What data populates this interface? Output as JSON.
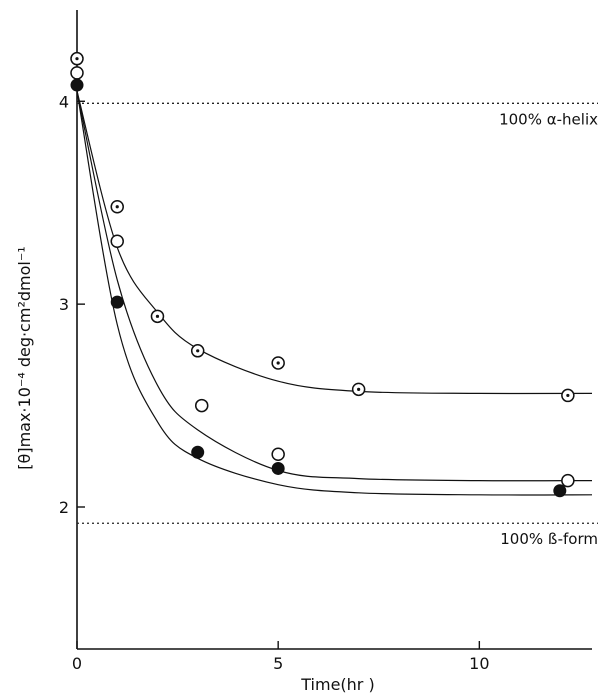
{
  "chart_data": {
    "type": "scatter",
    "title": "",
    "xlabel": "Time(hr )",
    "ylabel": "[θ]max·10⁻⁴ deg·cm²dmol⁻¹",
    "xlim": [
      0,
      12.8
    ],
    "ylim": [
      1.3,
      4.45
    ],
    "x_ticks": [
      0,
      5,
      10
    ],
    "x_tick_labels": [
      "0",
      "5",
      "10"
    ],
    "y_ticks": [
      2,
      3,
      4
    ],
    "y_tick_labels": [
      "2",
      "3",
      "4"
    ],
    "grid": false,
    "reference_lines": [
      {
        "y": 3.99,
        "label": "100% α-helix"
      },
      {
        "y": 1.92,
        "label": "100% ß-form"
      }
    ],
    "series": [
      {
        "marker": "dotted-circle",
        "x": [
          0,
          1,
          2,
          3,
          5,
          7,
          12.2
        ],
        "y": [
          4.21,
          3.48,
          2.94,
          2.77,
          2.71,
          2.58,
          2.55
        ],
        "fit_y": [
          4.05,
          3.28,
          2.96,
          2.78,
          2.62,
          2.57,
          2.56,
          2.56
        ]
      },
      {
        "marker": "open-circle",
        "x": [
          0,
          1,
          3.1,
          5,
          12.2
        ],
        "y": [
          4.14,
          3.31,
          2.5,
          2.26,
          2.13
        ],
        "fit_y": [
          4.05,
          3.12,
          2.6,
          2.38,
          2.18,
          2.14,
          2.13,
          2.13
        ]
      },
      {
        "marker": "filled-circle",
        "x": [
          0,
          1,
          3,
          5,
          12
        ],
        "y": [
          4.08,
          3.01,
          2.27,
          2.19,
          2.08
        ],
        "fit_y": [
          4.05,
          2.9,
          2.42,
          2.24,
          2.11,
          2.07,
          2.06,
          2.06
        ]
      }
    ],
    "fit_x": [
      0,
      1,
      2,
      3,
      5,
      7,
      10,
      12.8
    ]
  }
}
